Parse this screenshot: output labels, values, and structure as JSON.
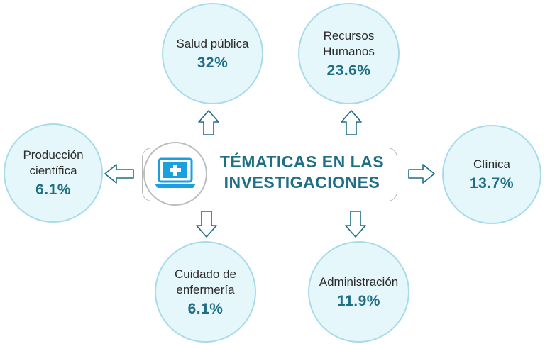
{
  "center": {
    "title": "TÉMATICAS EN LAS\nINVESTIGACIONES",
    "icon": "laptop-medical-cross-icon"
  },
  "topics": {
    "salud_publica": {
      "label": "Salud pública",
      "value": "32%"
    },
    "recursos_humanos": {
      "label": "Recursos\nHumanos",
      "value": "23.6%"
    },
    "produccion_cientifica": {
      "label": "Producción\ncientífica",
      "value": "6.1%"
    },
    "clinica": {
      "label": "Clínica",
      "value": "13.7%"
    },
    "cuidado_enfermeria": {
      "label": "Cuidado de\nenfermería",
      "value": "6.1%"
    },
    "administracion": {
      "label": "Administración",
      "value": "11.9%"
    }
  },
  "colors": {
    "accent": "#1e6e86",
    "circle_fill": "#e6f7fb",
    "circle_border": "#a8dbe8",
    "icon_blue": "#1a9fe0"
  }
}
